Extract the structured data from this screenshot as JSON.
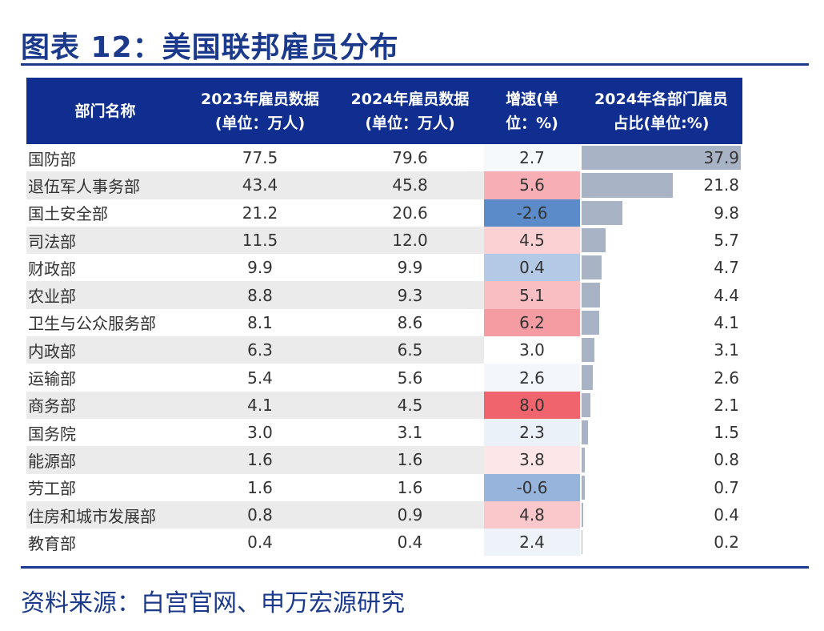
{
  "title": "图表 12：美国联邦雇员分布",
  "source": "资料来源：白宫官网、申万宏源研究",
  "chart_data": {
    "type": "table",
    "columns": [
      "部门名称",
      "2023年雇员数据\n(单位：万人)",
      "2024年雇员数据\n(单位：万人)",
      "增速(单\n位：%)",
      "2024年各部门雇员\n占比(单位:%)"
    ],
    "rows": [
      [
        "国防部",
        "77.5",
        "79.6",
        "2.7",
        "37.9"
      ],
      [
        "退伍军人事务部",
        "43.4",
        "45.8",
        "5.6",
        "21.8"
      ],
      [
        "国土安全部",
        "21.2",
        "20.6",
        "-2.6",
        "9.8"
      ],
      [
        "司法部",
        "11.5",
        "12.0",
        "4.5",
        "5.7"
      ],
      [
        "财政部",
        "9.9",
        "9.9",
        "0.4",
        "4.7"
      ],
      [
        "农业部",
        "8.8",
        "9.3",
        "5.1",
        "4.4"
      ],
      [
        "卫生与公众服务部",
        "8.1",
        "8.6",
        "6.2",
        "4.1"
      ],
      [
        "内政部",
        "6.3",
        "6.5",
        "3.0",
        "3.1"
      ],
      [
        "运输部",
        "5.4",
        "5.6",
        "2.6",
        "2.6"
      ],
      [
        "商务部",
        "4.1",
        "4.5",
        "8.0",
        "2.1"
      ],
      [
        "国务院",
        "3.0",
        "3.1",
        "2.3",
        "1.5"
      ],
      [
        "能源部",
        "1.6",
        "1.6",
        "3.8",
        "0.8"
      ],
      [
        "劳工部",
        "1.6",
        "1.6",
        "-0.6",
        "0.7"
      ],
      [
        "住房和城市发展部",
        "0.8",
        "0.9",
        "4.8",
        "0.4"
      ],
      [
        "教育部",
        "0.4",
        "0.4",
        "2.4",
        "0.2"
      ]
    ],
    "growth_color_scale": {
      "min": "#5b8bc9",
      "mid": "#ffffff",
      "max": "#f0646e"
    },
    "share_bar_color": "#a8b3c6",
    "header_color": "#0f2e8f"
  }
}
